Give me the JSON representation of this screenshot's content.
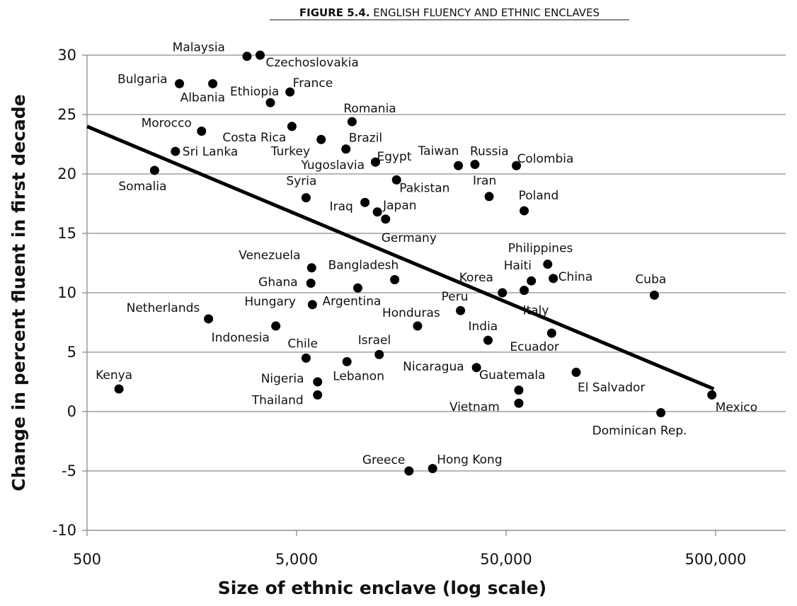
{
  "chart_data": {
    "type": "scatter",
    "title_prefix": "FIGURE 5.4.",
    "title_text": "ENGLISH FLUENCY AND ETHNIC ENCLAVES",
    "xlabel": "Size of ethnic enclave (log scale)",
    "ylabel": "Change in percent fluent in first decade",
    "x_scale": "log",
    "xlim": [
      500,
      1000000
    ],
    "ylim": [
      -10,
      30
    ],
    "x_ticks": [
      500,
      5000,
      50000,
      500000
    ],
    "x_tick_labels": [
      "500",
      "5,000",
      "50,000",
      "500,000"
    ],
    "y_ticks": [
      -10,
      -5,
      0,
      5,
      10,
      15,
      20,
      25,
      30
    ],
    "y_tick_labels": [
      "-10",
      "-5",
      "0",
      "5",
      "10",
      "15",
      "20",
      "25",
      "30"
    ],
    "grid": true,
    "trend_line": {
      "x": [
        500,
        490000
      ],
      "y": [
        24.0,
        1.9
      ]
    },
    "points": [
      {
        "name": "Malaysia",
        "x": 2900,
        "y": 29.9
      },
      {
        "name": "Czechoslovakia",
        "x": 3350,
        "y": 30.0
      },
      {
        "name": "Bulgaria",
        "x": 1380,
        "y": 27.6
      },
      {
        "name": "Albania",
        "x": 1990,
        "y": 27.6
      },
      {
        "name": "Ethiopia",
        "x": 3750,
        "y": 26.0
      },
      {
        "name": "France",
        "x": 4650,
        "y": 26.9
      },
      {
        "name": "Romania",
        "x": 9200,
        "y": 24.4
      },
      {
        "name": "Morocco",
        "x": 1760,
        "y": 23.6
      },
      {
        "name": "Costa Rica",
        "x": 4750,
        "y": 24.0
      },
      {
        "name": "Turkey",
        "x": 6550,
        "y": 22.9
      },
      {
        "name": "Brazil",
        "x": 8600,
        "y": 22.1
      },
      {
        "name": "Sri Lanka",
        "x": 1320,
        "y": 21.9
      },
      {
        "name": "Yugoslavia",
        "x": 11900,
        "y": 21.0
      },
      {
        "name": "Egypt",
        "x": 11900,
        "y": 21.0
      },
      {
        "name": "Taiwan",
        "x": 29600,
        "y": 20.7
      },
      {
        "name": "Russia",
        "x": 35500,
        "y": 20.8
      },
      {
        "name": "Colombia",
        "x": 56000,
        "y": 20.7
      },
      {
        "name": "Somalia",
        "x": 1050,
        "y": 20.3
      },
      {
        "name": "Syria",
        "x": 5550,
        "y": 18.0
      },
      {
        "name": "Pakistan",
        "x": 15000,
        "y": 19.5
      },
      {
        "name": "Iran",
        "x": 41500,
        "y": 18.1
      },
      {
        "name": "Poland",
        "x": 61000,
        "y": 16.9
      },
      {
        "name": "Iraq",
        "x": 10600,
        "y": 17.6
      },
      {
        "name": "Japan",
        "x": 12150,
        "y": 16.8
      },
      {
        "name": "Germany",
        "x": 13300,
        "y": 16.2
      },
      {
        "name": "Venezuela",
        "x": 5900,
        "y": 12.1
      },
      {
        "name": "Bangladesh",
        "x": 14700,
        "y": 11.1
      },
      {
        "name": "Philippines",
        "x": 79000,
        "y": 12.4
      },
      {
        "name": "Haiti",
        "x": 66000,
        "y": 11.0
      },
      {
        "name": "China",
        "x": 84000,
        "y": 11.2
      },
      {
        "name": "Cuba",
        "x": 255000,
        "y": 9.8
      },
      {
        "name": "Ghana",
        "x": 5850,
        "y": 10.8
      },
      {
        "name": "Argentina",
        "x": 9800,
        "y": 10.4
      },
      {
        "name": "Korea",
        "x": 48000,
        "y": 10.0
      },
      {
        "name": "Italy",
        "x": 61000,
        "y": 10.2
      },
      {
        "name": "Hungary",
        "x": 5950,
        "y": 9.0
      },
      {
        "name": "Peru",
        "x": 30300,
        "y": 8.5
      },
      {
        "name": "Netherlands",
        "x": 1900,
        "y": 7.8
      },
      {
        "name": "Indonesia",
        "x": 3980,
        "y": 7.2
      },
      {
        "name": "Honduras",
        "x": 18900,
        "y": 7.2
      },
      {
        "name": "India",
        "x": 41000,
        "y": 6.0
      },
      {
        "name": "Ecuador",
        "x": 82500,
        "y": 6.6
      },
      {
        "name": "Chile",
        "x": 5550,
        "y": 4.5
      },
      {
        "name": "Israel",
        "x": 12400,
        "y": 4.8
      },
      {
        "name": "Lebanon",
        "x": 8700,
        "y": 4.2
      },
      {
        "name": "Nicaragua",
        "x": 36100,
        "y": 3.7
      },
      {
        "name": "El Salvador",
        "x": 108000,
        "y": 3.3
      },
      {
        "name": "Kenya",
        "x": 710,
        "y": 1.9
      },
      {
        "name": "Nigeria",
        "x": 6300,
        "y": 2.5
      },
      {
        "name": "Guatemala",
        "x": 57500,
        "y": 1.8
      },
      {
        "name": "Thailand",
        "x": 6300,
        "y": 1.4
      },
      {
        "name": "Vietnam",
        "x": 57500,
        "y": 0.7
      },
      {
        "name": "Mexico",
        "x": 480000,
        "y": 1.4
      },
      {
        "name": "Dominican Rep.",
        "x": 274000,
        "y": -0.1
      },
      {
        "name": "Greece",
        "x": 17200,
        "y": -5.0
      },
      {
        "name": "Hong Kong",
        "x": 22300,
        "y": -4.8
      }
    ]
  }
}
